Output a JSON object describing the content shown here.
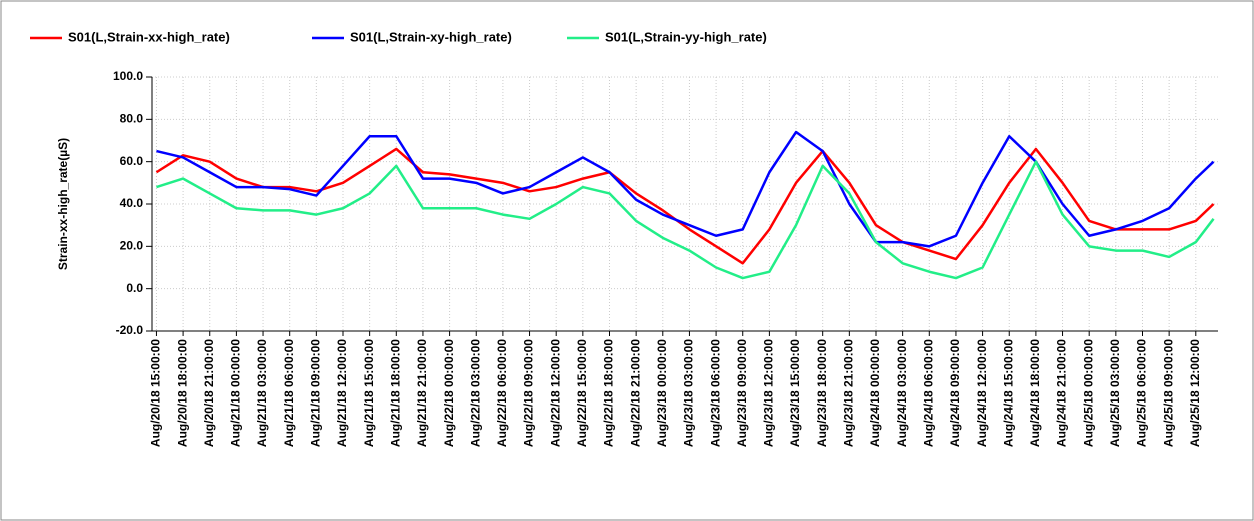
{
  "chart_data": {
    "type": "line",
    "y_label": "Strain-xx-high_rate(µS)",
    "x": [
      0,
      3,
      6,
      9,
      12,
      15,
      18,
      21,
      24,
      27,
      30,
      33,
      36,
      39,
      42,
      45,
      48,
      51,
      54,
      57,
      60,
      63,
      66,
      69,
      72,
      75,
      78,
      81,
      84,
      87,
      90,
      93,
      96,
      99,
      102,
      105,
      108,
      111,
      114,
      117,
      119
    ],
    "series": [
      {
        "name": "S01(L,Strain-xx-high_rate)",
        "color": "#ff0000",
        "values": [
          55,
          63,
          60,
          52,
          48,
          48,
          46,
          50,
          58,
          66,
          55,
          54,
          52,
          50,
          46,
          48,
          52,
          55,
          45,
          37,
          28,
          20,
          12,
          28,
          50,
          65,
          50,
          30,
          22,
          18,
          14,
          30,
          50,
          66,
          50,
          32,
          28,
          28,
          28,
          32,
          40
        ]
      },
      {
        "name": "S01(L,Strain-xy-high_rate)",
        "color": "#0000ff",
        "values": [
          65,
          62,
          55,
          48,
          48,
          47,
          44,
          58,
          72,
          72,
          52,
          52,
          50,
          45,
          48,
          55,
          62,
          55,
          42,
          35,
          30,
          25,
          28,
          55,
          74,
          65,
          40,
          22,
          22,
          20,
          25,
          50,
          72,
          60,
          40,
          25,
          28,
          32,
          38,
          52,
          60
        ]
      },
      {
        "name": "S01(L,Strain-yy-high_rate)",
        "color": "#22ee88",
        "values": [
          48,
          52,
          45,
          38,
          37,
          37,
          35,
          38,
          45,
          58,
          38,
          38,
          38,
          35,
          33,
          40,
          48,
          45,
          32,
          24,
          18,
          10,
          5,
          8,
          30,
          58,
          45,
          22,
          12,
          8,
          5,
          10,
          35,
          60,
          35,
          20,
          18,
          18,
          15,
          22,
          33
        ]
      }
    ],
    "xlim": [
      -0.5,
      119.5
    ],
    "xticks": [
      {
        "value": 0,
        "label": "Aug/20/18 15:00:00"
      },
      {
        "value": 3,
        "label": "Aug/20/18 18:00:00"
      },
      {
        "value": 6,
        "label": "Aug/20/18 21:00:00"
      },
      {
        "value": 9,
        "label": "Aug/21/18 00:00:00"
      },
      {
        "value": 12,
        "label": "Aug/21/18 03:00:00"
      },
      {
        "value": 15,
        "label": "Aug/21/18 06:00:00"
      },
      {
        "value": 18,
        "label": "Aug/21/18 09:00:00"
      },
      {
        "value": 21,
        "label": "Aug/21/18 12:00:00"
      },
      {
        "value": 24,
        "label": "Aug/21/18 15:00:00"
      },
      {
        "value": 27,
        "label": "Aug/21/18 18:00:00"
      },
      {
        "value": 30,
        "label": "Aug/21/18 21:00:00"
      },
      {
        "value": 33,
        "label": "Aug/22/18 00:00:00"
      },
      {
        "value": 36,
        "label": "Aug/22/18 03:00:00"
      },
      {
        "value": 39,
        "label": "Aug/22/18 06:00:00"
      },
      {
        "value": 42,
        "label": "Aug/22/18 09:00:00"
      },
      {
        "value": 45,
        "label": "Aug/22/18 12:00:00"
      },
      {
        "value": 48,
        "label": "Aug/22/18 15:00:00"
      },
      {
        "value": 51,
        "label": "Aug/22/18 18:00:00"
      },
      {
        "value": 54,
        "label": "Aug/22/18 21:00:00"
      },
      {
        "value": 57,
        "label": "Aug/23/18 00:00:00"
      },
      {
        "value": 60,
        "label": "Aug/23/18 03:00:00"
      },
      {
        "value": 63,
        "label": "Aug/23/18 06:00:00"
      },
      {
        "value": 66,
        "label": "Aug/23/18 09:00:00"
      },
      {
        "value": 69,
        "label": "Aug/23/18 12:00:00"
      },
      {
        "value": 72,
        "label": "Aug/23/18 15:00:00"
      },
      {
        "value": 75,
        "label": "Aug/23/18 18:00:00"
      },
      {
        "value": 78,
        "label": "Aug/23/18 21:00:00"
      },
      {
        "value": 81,
        "label": "Aug/24/18 00:00:00"
      },
      {
        "value": 84,
        "label": "Aug/24/18 03:00:00"
      },
      {
        "value": 87,
        "label": "Aug/24/18 06:00:00"
      },
      {
        "value": 90,
        "label": "Aug/24/18 09:00:00"
      },
      {
        "value": 93,
        "label": "Aug/24/18 12:00:00"
      },
      {
        "value": 96,
        "label": "Aug/24/18 15:00:00"
      },
      {
        "value": 99,
        "label": "Aug/24/18 18:00:00"
      },
      {
        "value": 102,
        "label": "Aug/24/18 21:00:00"
      },
      {
        "value": 105,
        "label": "Aug/25/18 00:00:00"
      },
      {
        "value": 108,
        "label": "Aug/25/18 03:00:00"
      },
      {
        "value": 111,
        "label": "Aug/25/18 06:00:00"
      },
      {
        "value": 114,
        "label": "Aug/25/18 09:00:00"
      },
      {
        "value": 117,
        "label": "Aug/25/18 12:00:00"
      }
    ],
    "ylim": [
      -20,
      100
    ],
    "yticks": [
      {
        "value": -20,
        "label": "-20.0"
      },
      {
        "value": 0,
        "label": "0.0"
      },
      {
        "value": 20,
        "label": "20.0"
      },
      {
        "value": 40,
        "label": "40.0"
      },
      {
        "value": 60,
        "label": "60.0"
      },
      {
        "value": 80,
        "label": "80.0"
      },
      {
        "value": 100,
        "label": "100.0"
      }
    ],
    "grid": true
  }
}
